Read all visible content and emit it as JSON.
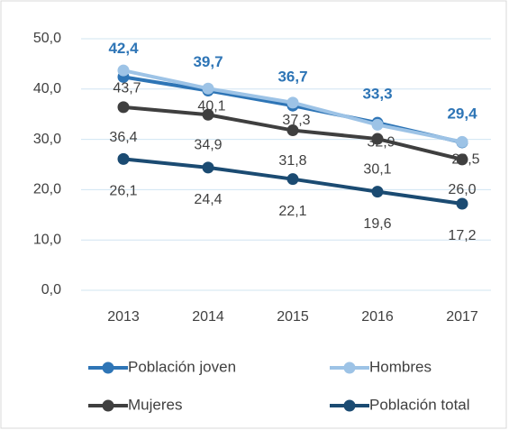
{
  "chart_data": {
    "type": "line",
    "categories": [
      "2013",
      "2014",
      "2015",
      "2016",
      "2017"
    ],
    "series": [
      {
        "name": "Población joven",
        "color": "#2e75b6",
        "values": [
          42.4,
          39.7,
          36.7,
          33.3,
          29.4
        ],
        "value_labels": [
          "42,4",
          "39,7",
          "36,7",
          "33,3",
          "29,4"
        ]
      },
      {
        "name": "Hombres",
        "color": "#9dc3e6",
        "values": [
          43.7,
          40.1,
          37.3,
          32.9,
          29.5
        ],
        "value_labels": [
          "43,7",
          "40,1",
          "37,3",
          "32,9",
          "29,5"
        ]
      },
      {
        "name": "Mujeres",
        "color": "#3f3f3f",
        "values": [
          36.4,
          34.9,
          31.8,
          30.1,
          26.0
        ],
        "value_labels": [
          "36,4",
          "34,9",
          "31,8",
          "30,1",
          "26,0"
        ]
      },
      {
        "name": "Población total",
        "color": "#1b4b72",
        "values": [
          26.1,
          24.4,
          22.1,
          19.6,
          17.2
        ],
        "value_labels": [
          "26,1",
          "24,4",
          "22,1",
          "19,6",
          "17,2"
        ]
      }
    ],
    "ylim": [
      0,
      50
    ],
    "yticks": [
      {
        "value": 0,
        "label": "0,0"
      },
      {
        "value": 10,
        "label": "10,0"
      },
      {
        "value": 20,
        "label": "20,0"
      },
      {
        "value": 30,
        "label": "30,0"
      },
      {
        "value": 40,
        "label": "40,0"
      },
      {
        "value": 50,
        "label": "50,0"
      }
    ],
    "grid": true
  }
}
